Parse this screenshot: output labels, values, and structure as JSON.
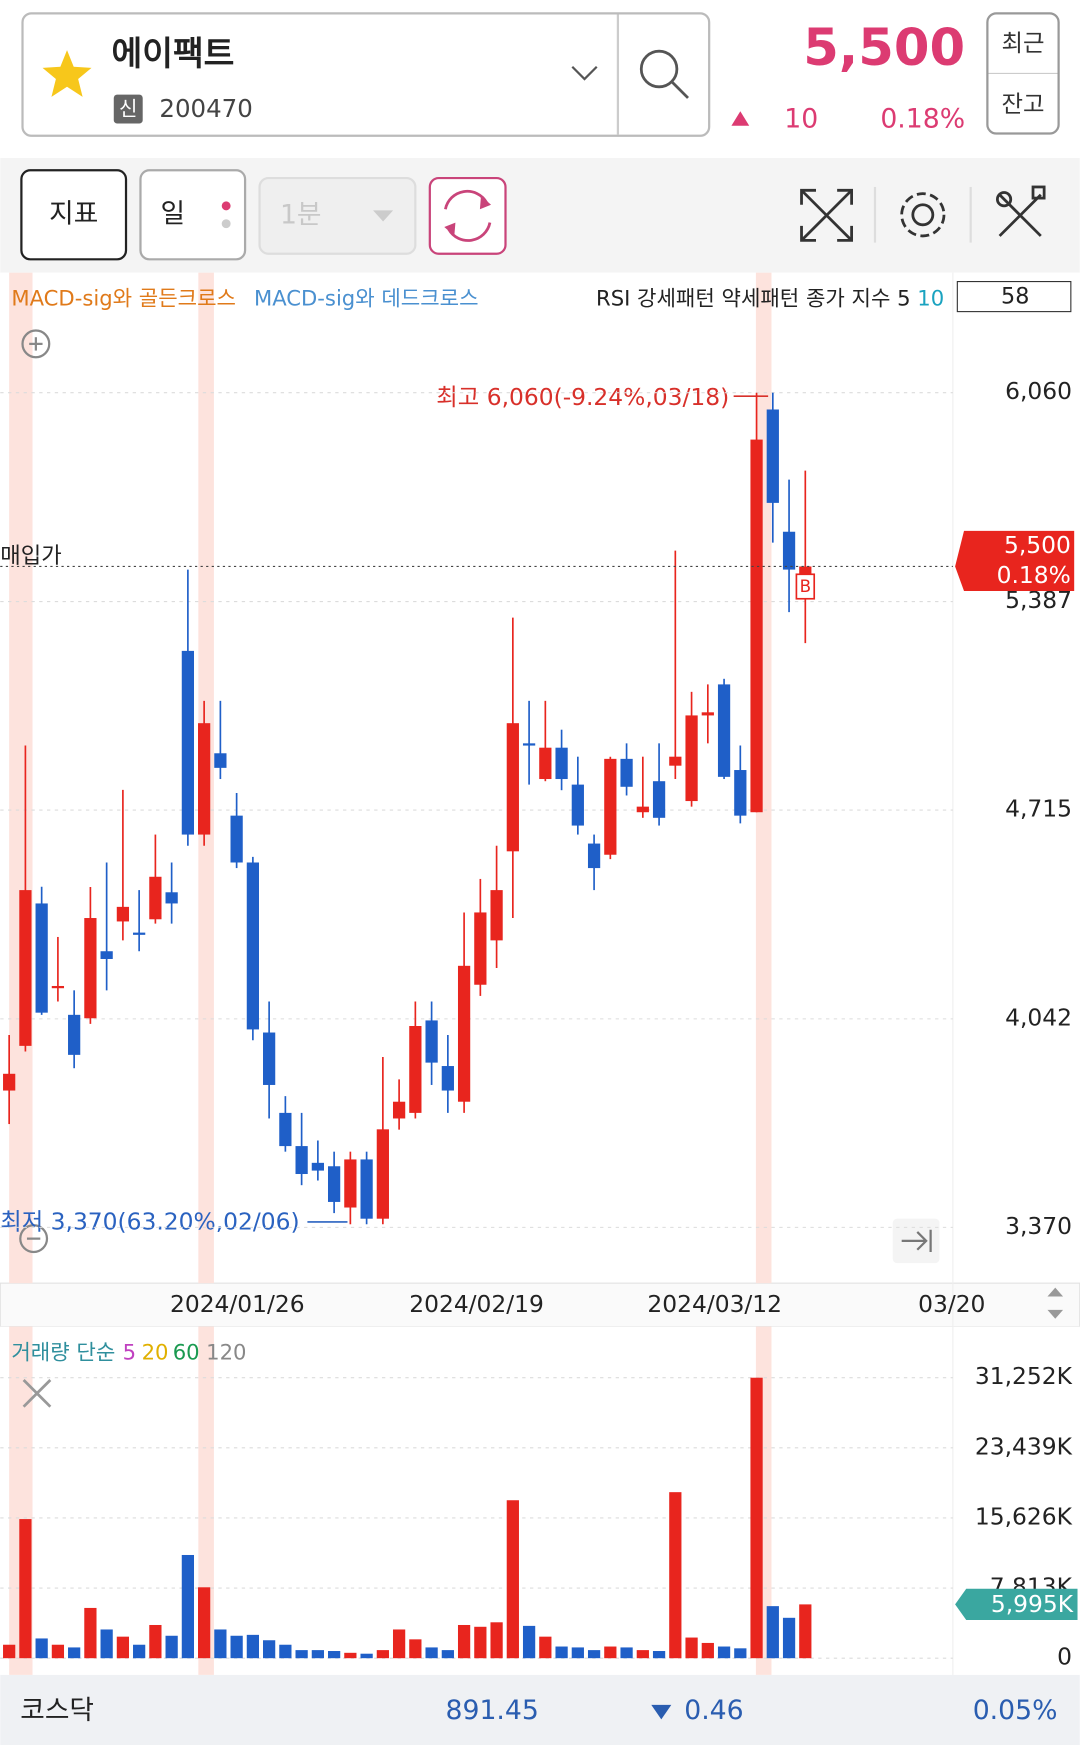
{
  "header": {
    "name": "에이팩트",
    "badge": "신",
    "code": "200470",
    "price": "5,500",
    "change": "10",
    "change_rate": "0.18%",
    "buttons": [
      "최근",
      "잔고"
    ]
  },
  "toolbar": {
    "buttons": [
      "지표",
      "일",
      "1분"
    ]
  },
  "chart_data": [
    {
      "type": "candlestick",
      "legend": [
        "MACD-sig와 골든크로스",
        "MACD-sig와 데드크로스"
      ],
      "indicator_legend": [
        "RSI 강세패턴 약세패턴 종가 지수 5",
        "10"
      ],
      "indicator_value": 58,
      "purchase_label": "매입가",
      "annotations": {
        "high": "최고 6,060(-9.24%,03/18)",
        "low": "최저 3,370(63.20%,02/06)"
      },
      "marker": "B",
      "current_price": {
        "value": 5500,
        "label": "5,500"
      },
      "current_rate": "0.18%",
      "x_labels": [
        "2024/01/26",
        "2024/02/19",
        "2024/03/12",
        "03/20"
      ],
      "up_color": "#e8251e",
      "down_color": "#1f5fc8",
      "open": [
        3811,
        3955,
        4414,
        4141,
        4055,
        4044,
        4260,
        4356,
        4320,
        4363,
        4450,
        5228,
        4636,
        4898,
        4697,
        4546,
        3998,
        3739,
        3632,
        3578,
        3567,
        3434,
        3589,
        3398,
        3721,
        3739,
        4037,
        3890,
        3775,
        4152,
        4295,
        4582,
        4930,
        4815,
        4916,
        4797,
        4607,
        4571,
        4880,
        4708,
        4808,
        4858,
        4744,
        5020,
        5120,
        4844,
        4708,
        6006,
        5612,
        5461
      ],
      "high": [
        3990,
        4923,
        4468,
        4306,
        4134,
        4467,
        4546,
        4780,
        4457,
        4636,
        4546,
        5490,
        5067,
        5067,
        4770,
        4564,
        4098,
        3793,
        3739,
        3650,
        3614,
        3614,
        3614,
        3919,
        3847,
        4098,
        4098,
        3990,
        4385,
        4493,
        4600,
        5335,
        5067,
        5067,
        4974,
        4887,
        4636,
        4887,
        4930,
        4887,
        4930,
        5551,
        5096,
        5120,
        5138,
        4923,
        6060,
        6060,
        5780,
        5809
      ],
      "low": [
        3703,
        3937,
        4055,
        4098,
        3883,
        4026,
        4134,
        4295,
        4260,
        4349,
        4349,
        4600,
        4600,
        4815,
        4528,
        3973,
        3721,
        3614,
        3506,
        3521,
        3416,
        3380,
        3380,
        3380,
        3685,
        3721,
        3829,
        3739,
        3739,
        4116,
        4206,
        4367,
        4797,
        4808,
        4779,
        4636,
        4457,
        4557,
        4762,
        4690,
        4665,
        4815,
        4726,
        4930,
        4815,
        4672,
        4708,
        5577,
        5353,
        5253
      ],
      "close": [
        3865,
        4457,
        4062,
        4148,
        3926,
        4367,
        4235,
        4403,
        4313,
        4500,
        4414,
        4636,
        4995,
        4851,
        4546,
        4008,
        3829,
        3632,
        3542,
        3553,
        3452,
        3589,
        3398,
        3686,
        3775,
        4019,
        3901,
        3811,
        4213,
        4385,
        4457,
        4995,
        4923,
        4916,
        4815,
        4665,
        4528,
        4880,
        4790,
        4726,
        4690,
        4887,
        5020,
        5030,
        4822,
        4697,
        5909,
        5705,
        5490,
        5500
      ],
      "ylim": [
        3201,
        6447
      ],
      "yticks": [
        {
          "value": 6060,
          "label": "6,060"
        },
        {
          "value": 5387,
          "label": "5,387"
        },
        {
          "value": 4715,
          "label": "4,715"
        },
        {
          "value": 4042,
          "label": "4,042"
        },
        {
          "value": 3370,
          "label": "3,370"
        }
      ],
      "grid": true
    },
    {
      "type": "bar",
      "legend": [
        "거래량 단순",
        "5",
        "20",
        "60",
        "120"
      ],
      "values": [
        1500,
        15500,
        2200,
        1500,
        1200,
        5600,
        3200,
        2400,
        1500,
        3700,
        2500,
        11500,
        7900,
        3200,
        2500,
        2600,
        2000,
        1500,
        900,
        900,
        800,
        600,
        500,
        900,
        3200,
        2100,
        1200,
        900,
        3700,
        3500,
        4000,
        17600,
        3600,
        2400,
        1300,
        1200,
        900,
        1300,
        1200,
        900,
        800,
        18500,
        2300,
        1700,
        1300,
        1100,
        31252,
        5800,
        4500,
        5995
      ],
      "current": {
        "value": 5995,
        "label": "5,995K"
      },
      "ylim": [
        0,
        35960
      ],
      "yticks": [
        {
          "value": 31252,
          "label": "31,252K"
        },
        {
          "value": 23439,
          "label": "23,439K"
        },
        {
          "value": 15626,
          "label": "15,626K"
        },
        {
          "value": 7813,
          "label": "7,813K"
        },
        0
      ],
      "grid": true
    }
  ],
  "footer": {
    "market": "코스닥",
    "index": "891.45",
    "change": "0.46",
    "rate": "0.05%"
  }
}
